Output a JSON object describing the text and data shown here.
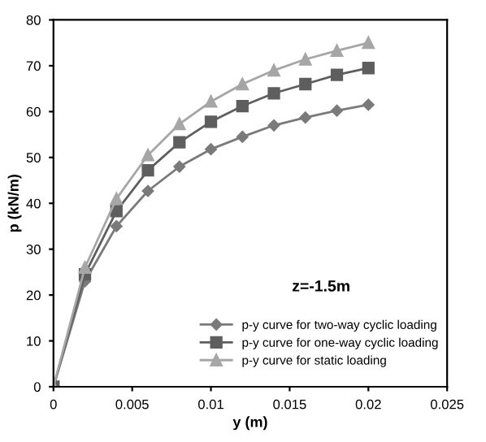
{
  "chart_data": {
    "type": "line",
    "xlabel": "y (m)",
    "ylabel": "p (kN/m)",
    "annotations": [
      "z=-1.5m"
    ],
    "x": [
      0,
      0.002,
      0.004,
      0.006,
      0.008,
      0.01,
      0.012,
      0.014,
      0.016,
      0.018,
      0.02
    ],
    "series": [
      {
        "name": "p-y curve for two-way cyclic loading",
        "color": "#7a7a7a",
        "marker": "diamond",
        "values": [
          0,
          23,
          35,
          42.7,
          48,
          51.8,
          54.5,
          57,
          58.7,
          60.2,
          61.5
        ]
      },
      {
        "name": "p-y curve for one-way cyclic loading",
        "color": "#5e5e5e",
        "marker": "square",
        "values": [
          0,
          24.5,
          38.3,
          47.2,
          53.3,
          57.8,
          61.2,
          64,
          66,
          68,
          69.5
        ]
      },
      {
        "name": "p-y curve for static loading",
        "color": "#a6a6a6",
        "marker": "triangle",
        "values": [
          0,
          26,
          41,
          50.5,
          57.3,
          62.2,
          66,
          69,
          71.4,
          73.3,
          75
        ]
      }
    ],
    "xlim": [
      0,
      0.025
    ],
    "xticks": [
      0,
      0.005,
      0.01,
      0.015,
      0.02,
      0.025
    ],
    "ylim": [
      0,
      80
    ],
    "yticks": [
      0,
      10,
      20,
      30,
      40,
      50,
      60,
      70,
      80
    ],
    "grid": false,
    "legend": "bottom right",
    "line_style": "solid"
  }
}
